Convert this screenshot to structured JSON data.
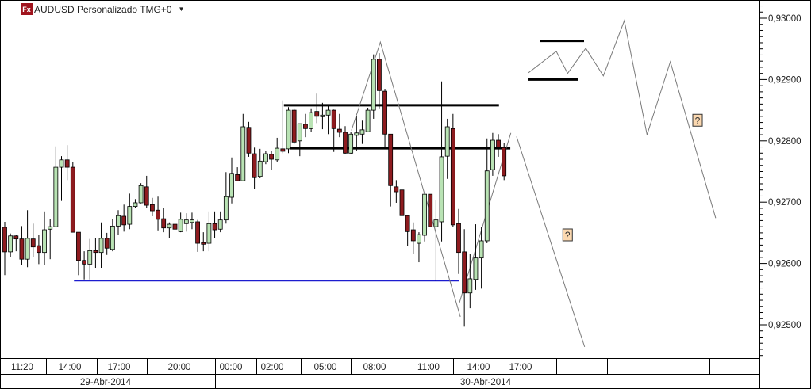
{
  "header": {
    "icon_label": "Fx",
    "title": "AUDUSD Personalizado TMG+0",
    "menu_icon": "caret-down-icon"
  },
  "chart_data": {
    "type": "candlestick",
    "symbol": "AUDUSD",
    "ylim": [
      0.9245,
      0.9303
    ],
    "y_ticks": [
      "0,93000",
      "0,92900",
      "0,92800",
      "0,92700",
      "0,92600",
      "0,92500"
    ],
    "y_tick_values": [
      0.93,
      0.929,
      0.928,
      0.927,
      0.926,
      0.925
    ],
    "x_time_labels": [
      "11:20",
      "14:00",
      "17:00",
      "20:00",
      "00:00",
      "02:00",
      "05:00",
      "08:00",
      "11:00",
      "14:00",
      "17:00"
    ],
    "x_date_labels": [
      "29-Abr-2014",
      "30-Abr-2014"
    ],
    "colors": {
      "up": "#b9e3b4",
      "down": "#8e1b1f",
      "wick": "#000000",
      "support": "#1c1ccf",
      "level": "#000000",
      "projection": "#7a7a7a",
      "note_fill": "#fbd8b0"
    },
    "candles_ohlc": [
      [
        0.92659,
        0.92668,
        0.92581,
        0.92619
      ],
      [
        0.92619,
        0.92649,
        0.9261,
        0.92645
      ],
      [
        0.92645,
        0.92646,
        0.9262,
        0.9264
      ],
      [
        0.9264,
        0.92661,
        0.92597,
        0.92607
      ],
      [
        0.92607,
        0.92687,
        0.92594,
        0.92641
      ],
      [
        0.9264,
        0.92665,
        0.92611,
        0.92627
      ],
      [
        0.92629,
        0.92647,
        0.92599,
        0.92618
      ],
      [
        0.92618,
        0.92685,
        0.92598,
        0.92655
      ],
      [
        0.92656,
        0.92673,
        0.92607,
        0.9266
      ],
      [
        0.9266,
        0.92791,
        0.92659,
        0.92757
      ],
      [
        0.92757,
        0.92775,
        0.92702,
        0.92769
      ],
      [
        0.92769,
        0.92793,
        0.92736,
        0.92757
      ],
      [
        0.92757,
        0.92766,
        0.92651,
        0.92651
      ],
      [
        0.92651,
        0.92651,
        0.92581,
        0.92605
      ],
      [
        0.92605,
        0.9262,
        0.92574,
        0.92599
      ],
      [
        0.92599,
        0.9264,
        0.92574,
        0.92621
      ],
      [
        0.92621,
        0.92641,
        0.92593,
        0.92618
      ],
      [
        0.92618,
        0.92667,
        0.92593,
        0.92641
      ],
      [
        0.92641,
        0.9265,
        0.92614,
        0.92625
      ],
      [
        0.92623,
        0.92673,
        0.9262,
        0.92661
      ],
      [
        0.92661,
        0.92687,
        0.92647,
        0.92678
      ],
      [
        0.92677,
        0.92696,
        0.92652,
        0.92663
      ],
      [
        0.92664,
        0.92714,
        0.92656,
        0.92693
      ],
      [
        0.92693,
        0.92705,
        0.92691,
        0.92699
      ],
      [
        0.92699,
        0.92731,
        0.92698,
        0.92727
      ],
      [
        0.92725,
        0.92743,
        0.92691,
        0.92695
      ],
      [
        0.92696,
        0.92707,
        0.92677,
        0.92686
      ],
      [
        0.92687,
        0.92709,
        0.92654,
        0.92672
      ],
      [
        0.92673,
        0.9269,
        0.92651,
        0.92658
      ],
      [
        0.92658,
        0.92667,
        0.92642,
        0.92664
      ],
      [
        0.92664,
        0.92665,
        0.9264,
        0.92656
      ],
      [
        0.92652,
        0.92683,
        0.92651,
        0.92672
      ],
      [
        0.92665,
        0.92682,
        0.92652,
        0.92671
      ],
      [
        0.92667,
        0.92683,
        0.92656,
        0.92671
      ],
      [
        0.92668,
        0.92671,
        0.92619,
        0.92633
      ],
      [
        0.92634,
        0.92651,
        0.9262,
        0.92632
      ],
      [
        0.92633,
        0.92685,
        0.9262,
        0.92665
      ],
      [
        0.92665,
        0.92685,
        0.92642,
        0.92655
      ],
      [
        0.92656,
        0.92685,
        0.92651,
        0.92671
      ],
      [
        0.92671,
        0.92749,
        0.92665,
        0.92709
      ],
      [
        0.92708,
        0.92773,
        0.92698,
        0.92747
      ],
      [
        0.92745,
        0.92757,
        0.92735,
        0.92735
      ],
      [
        0.92735,
        0.92844,
        0.92735,
        0.92823
      ],
      [
        0.92822,
        0.92831,
        0.92774,
        0.9278
      ],
      [
        0.92779,
        0.92789,
        0.92722,
        0.9274
      ],
      [
        0.92742,
        0.92787,
        0.92739,
        0.92767
      ],
      [
        0.92766,
        0.92783,
        0.92762,
        0.92779
      ],
      [
        0.92778,
        0.92783,
        0.92753,
        0.9277
      ],
      [
        0.92769,
        0.92805,
        0.92766,
        0.92788
      ],
      [
        0.92787,
        0.92866,
        0.9278,
        0.92783
      ],
      [
        0.92787,
        0.92855,
        0.9278,
        0.9285
      ],
      [
        0.9285,
        0.92853,
        0.92795,
        0.92798
      ],
      [
        0.928,
        0.92828,
        0.92775,
        0.92828
      ],
      [
        0.92827,
        0.92844,
        0.92806,
        0.9282
      ],
      [
        0.9282,
        0.92853,
        0.92814,
        0.92846
      ],
      [
        0.92848,
        0.92877,
        0.92829,
        0.9284
      ],
      [
        0.9284,
        0.92862,
        0.92819,
        0.92842
      ],
      [
        0.92842,
        0.92859,
        0.92811,
        0.9285
      ],
      [
        0.9285,
        0.92851,
        0.92782,
        0.9282
      ],
      [
        0.92819,
        0.92844,
        0.92806,
        0.92814
      ],
      [
        0.92814,
        0.92824,
        0.92778,
        0.9278
      ],
      [
        0.9278,
        0.92815,
        0.92778,
        0.92811
      ],
      [
        0.92809,
        0.92841,
        0.92784,
        0.92813
      ],
      [
        0.92811,
        0.92833,
        0.92795,
        0.92818
      ],
      [
        0.92815,
        0.92854,
        0.92815,
        0.9285
      ],
      [
        0.9285,
        0.92941,
        0.92836,
        0.92933
      ],
      [
        0.92933,
        0.92943,
        0.92853,
        0.92882
      ],
      [
        0.92881,
        0.92885,
        0.92788,
        0.92811
      ],
      [
        0.92811,
        0.92811,
        0.92693,
        0.92727
      ],
      [
        0.92725,
        0.92736,
        0.92699,
        0.92717
      ],
      [
        0.9272,
        0.9272,
        0.92678,
        0.92678
      ],
      [
        0.92678,
        0.92678,
        0.92628,
        0.92652
      ],
      [
        0.92655,
        0.92667,
        0.92616,
        0.92637
      ],
      [
        0.92633,
        0.92651,
        0.92602,
        0.92647
      ],
      [
        0.92646,
        0.92713,
        0.92636,
        0.92713
      ],
      [
        0.92713,
        0.92713,
        0.92659,
        0.9266
      ],
      [
        0.9266,
        0.92704,
        0.92571,
        0.92671
      ],
      [
        0.92668,
        0.92897,
        0.92636,
        0.92774
      ],
      [
        0.92775,
        0.92836,
        0.92738,
        0.92823
      ],
      [
        0.9282,
        0.92844,
        0.9266,
        0.92663
      ],
      [
        0.92665,
        0.92689,
        0.92583,
        0.92618
      ],
      [
        0.92619,
        0.92656,
        0.92497,
        0.92552
      ],
      [
        0.92552,
        0.92616,
        0.92527,
        0.92575
      ],
      [
        0.92574,
        0.92664,
        0.92557,
        0.92609
      ],
      [
        0.92609,
        0.9266,
        0.92559,
        0.92637
      ],
      [
        0.92637,
        0.92804,
        0.92633,
        0.92751
      ],
      [
        0.92753,
        0.92813,
        0.92743,
        0.92801
      ],
      [
        0.92801,
        0.92811,
        0.92774,
        0.92789
      ],
      [
        0.92789,
        0.92796,
        0.92736,
        0.92743
      ]
    ],
    "drawings": {
      "levels": [
        {
          "price": 0.92858,
          "from_bar": 49.2,
          "to_bar": 87.1,
          "color": "#000000"
        },
        {
          "price": 0.92788,
          "from_bar": 50.2,
          "to_bar": 89.1,
          "color": "#000000"
        },
        {
          "price": 0.92572,
          "from_bar": 12.2,
          "to_bar": 80.0,
          "color": "#1c1ccf"
        },
        {
          "price": 0.92963,
          "from_bar": 94.3,
          "to_bar": 102.1,
          "color": "#000000"
        },
        {
          "price": 0.929,
          "from_bar": 92.3,
          "to_bar": 101.1,
          "color": "#000000"
        }
      ],
      "projections": [
        [
          [
            61.1,
            0.92817
          ],
          [
            66.2,
            0.92961
          ],
          [
            80.3,
            0.92513
          ]
        ],
        [
          [
            80.1,
            0.92535
          ],
          [
            89.2,
            0.92813
          ]
        ],
        [
          [
            90.2,
            0.92807
          ],
          [
            102.2,
            0.92464
          ]
        ],
        [
          [
            92.3,
            0.92911
          ],
          [
            97.2,
            0.92946
          ],
          [
            99.2,
            0.9291
          ],
          [
            102.4,
            0.92951
          ],
          [
            105.5,
            0.92906
          ],
          [
            109.2,
            0.92996
          ],
          [
            113.2,
            0.9281
          ],
          [
            117.3,
            0.92929
          ],
          [
            125.3,
            0.92674
          ]
        ]
      ],
      "notes": [
        {
          "text": "?",
          "bar": 99.2,
          "price": 0.92646
        },
        {
          "text": "?",
          "bar": 122.1,
          "price": 0.92833
        }
      ]
    }
  }
}
